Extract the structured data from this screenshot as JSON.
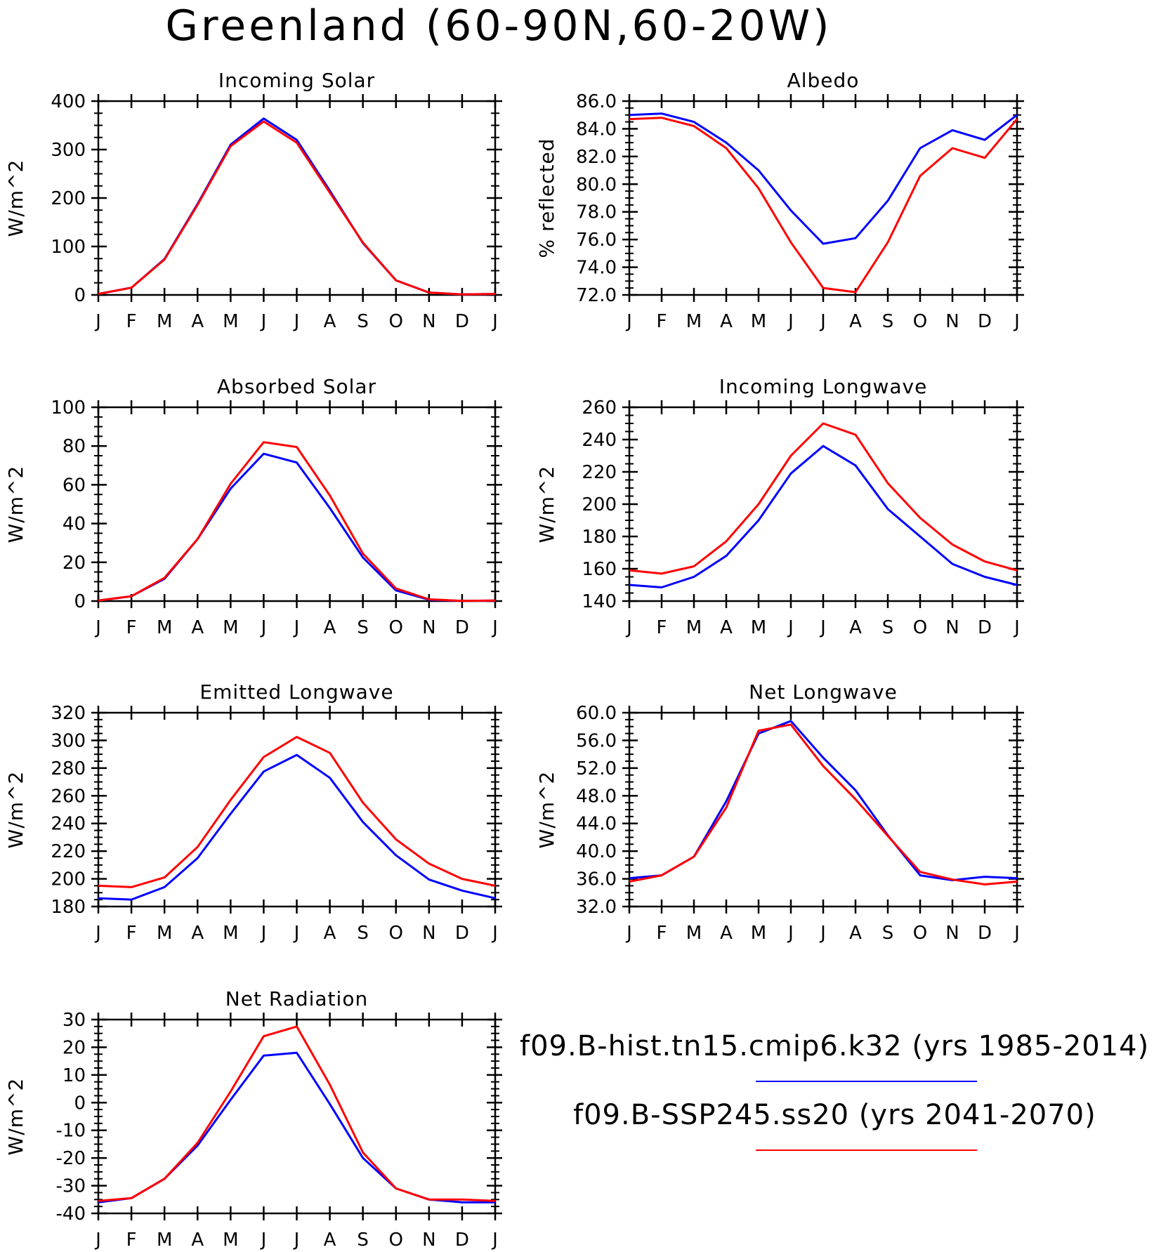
{
  "title": "Greenland (60-90N,60-20W)",
  "legend": [
    {
      "label": "f09.B-hist.tn15.cmip6.k32 (yrs 1985-2014)",
      "color": "#0000ff"
    },
    {
      "label": "f09.B-SSP245.ss20 (yrs 2041-2070)",
      "color": "#ff0000"
    }
  ],
  "chart_data": [
    {
      "type": "line",
      "title": "Incoming Solar",
      "ylabel": "W/m^2",
      "x": [
        "J",
        "F",
        "M",
        "A",
        "M",
        "J",
        "J",
        "A",
        "S",
        "O",
        "N",
        "D",
        "J"
      ],
      "ylim": [
        0,
        400
      ],
      "yticks": [
        0,
        100,
        200,
        300,
        400
      ],
      "ytick_labels": [
        "0",
        "100",
        "200",
        "300",
        "400"
      ],
      "series": [
        {
          "color": "#0000ff",
          "values": [
            2,
            15,
            74,
            188,
            310,
            364,
            320,
            215,
            107,
            30,
            5,
            1,
            2
          ]
        },
        {
          "color": "#ff0000",
          "values": [
            2,
            15,
            73,
            186,
            307,
            358,
            314,
            211,
            108,
            30,
            5,
            1,
            2
          ]
        }
      ]
    },
    {
      "type": "line",
      "title": "Albedo",
      "ylabel": "% reflected",
      "x": [
        "J",
        "F",
        "M",
        "A",
        "M",
        "J",
        "J",
        "A",
        "S",
        "O",
        "N",
        "D",
        "J"
      ],
      "ylim": [
        72,
        86
      ],
      "yticks": [
        72,
        74,
        76,
        78,
        80,
        82,
        84,
        86
      ],
      "ytick_labels": [
        "72.0",
        "74.0",
        "76.0",
        "78.0",
        "80.0",
        "82.0",
        "84.0",
        "86.0"
      ],
      "series": [
        {
          "color": "#0000ff",
          "values": [
            85.0,
            85.1,
            84.5,
            83.0,
            81.0,
            78.1,
            75.7,
            76.1,
            78.8,
            82.6,
            83.9,
            83.2,
            85.0
          ]
        },
        {
          "color": "#ff0000",
          "values": [
            84.7,
            84.8,
            84.2,
            82.6,
            79.7,
            75.8,
            72.5,
            72.2,
            75.8,
            80.6,
            82.6,
            81.9,
            84.7
          ]
        }
      ]
    },
    {
      "type": "line",
      "title": "Absorbed Solar",
      "ylabel": "W/m^2",
      "x": [
        "J",
        "F",
        "M",
        "A",
        "M",
        "J",
        "J",
        "A",
        "S",
        "O",
        "N",
        "D",
        "J"
      ],
      "ylim": [
        0,
        100
      ],
      "yticks": [
        0,
        20,
        40,
        60,
        80,
        100
      ],
      "ytick_labels": [
        "0",
        "20",
        "40",
        "60",
        "80",
        "100"
      ],
      "series": [
        {
          "color": "#0000ff",
          "values": [
            0.3,
            2.5,
            11.5,
            32,
            58,
            76,
            71.5,
            48,
            22.5,
            5.5,
            0.7,
            0.1,
            0.3
          ]
        },
        {
          "color": "#ff0000",
          "values": [
            0.3,
            2.5,
            12,
            32,
            60.5,
            82,
            79.5,
            54.5,
            24.5,
            6.5,
            0.9,
            0.1,
            0.3
          ]
        }
      ]
    },
    {
      "type": "line",
      "title": "Incoming Longwave",
      "ylabel": "W/m^2",
      "x": [
        "J",
        "F",
        "M",
        "A",
        "M",
        "J",
        "J",
        "A",
        "S",
        "O",
        "N",
        "D",
        "J"
      ],
      "ylim": [
        140,
        260
      ],
      "yticks": [
        140,
        160,
        180,
        200,
        220,
        240,
        260
      ],
      "ytick_labels": [
        "140",
        "160",
        "180",
        "200",
        "220",
        "240",
        "260"
      ],
      "series": [
        {
          "color": "#0000ff",
          "values": [
            150,
            148.5,
            155,
            168,
            190,
            219,
            236,
            224,
            197,
            180,
            163,
            155,
            150
          ]
        },
        {
          "color": "#ff0000",
          "values": [
            159,
            157,
            161.5,
            177,
            200,
            230,
            250,
            243,
            213,
            191.5,
            175,
            164.5,
            159
          ]
        }
      ]
    },
    {
      "type": "line",
      "title": "Emitted Longwave",
      "ylabel": "W/m^2",
      "x": [
        "J",
        "F",
        "M",
        "A",
        "M",
        "J",
        "J",
        "A",
        "S",
        "O",
        "N",
        "D",
        "J"
      ],
      "ylim": [
        180,
        320
      ],
      "yticks": [
        180,
        200,
        220,
        240,
        260,
        280,
        300,
        320
      ],
      "ytick_labels": [
        "180",
        "200",
        "220",
        "240",
        "260",
        "280",
        "300",
        "320"
      ],
      "series": [
        {
          "color": "#0000ff",
          "values": [
            186,
            185,
            194,
            215,
            247,
            277.5,
            289.5,
            273,
            241,
            217,
            199.5,
            191.5,
            186
          ]
        },
        {
          "color": "#ff0000",
          "values": [
            195,
            194,
            201,
            223,
            257,
            288,
            302.5,
            291,
            255,
            228.5,
            211,
            200,
            195
          ]
        }
      ]
    },
    {
      "type": "line",
      "title": "Net Longwave",
      "ylabel": "W/m^2",
      "x": [
        "J",
        "F",
        "M",
        "A",
        "M",
        "J",
        "J",
        "A",
        "S",
        "O",
        "N",
        "D",
        "J"
      ],
      "ylim": [
        32,
        60
      ],
      "yticks": [
        32,
        36,
        40,
        44,
        48,
        52,
        56,
        60
      ],
      "ytick_labels": [
        "32.0",
        "36.0",
        "40.0",
        "44.0",
        "48.0",
        "52.0",
        "56.0",
        "60.0"
      ],
      "series": [
        {
          "color": "#0000ff",
          "values": [
            36.1,
            36.5,
            39.2,
            47.2,
            57.0,
            58.8,
            53.5,
            48.8,
            42.3,
            36.5,
            35.8,
            36.3,
            36.1
          ]
        },
        {
          "color": "#ff0000",
          "values": [
            35.6,
            36.5,
            39.2,
            46.3,
            57.4,
            58.3,
            52.3,
            47.5,
            42.2,
            37.0,
            35.9,
            35.2,
            35.6
          ]
        }
      ]
    },
    {
      "type": "line",
      "title": "Net Radiation",
      "ylabel": "W/m^2",
      "x": [
        "J",
        "F",
        "M",
        "A",
        "M",
        "J",
        "J",
        "A",
        "S",
        "O",
        "N",
        "D",
        "J"
      ],
      "ylim": [
        -40,
        30
      ],
      "yticks": [
        -40,
        -30,
        -20,
        -10,
        0,
        10,
        20,
        30
      ],
      "ytick_labels": [
        "-40",
        "-30",
        "-20",
        "-10",
        "0",
        "10",
        "20",
        "30"
      ],
      "series": [
        {
          "color": "#0000ff",
          "values": [
            -36,
            -34.5,
            -27.5,
            -15.5,
            1,
            17,
            18,
            -0.5,
            -20,
            -31,
            -35,
            -36,
            -36
          ]
        },
        {
          "color": "#ff0000",
          "values": [
            -35.5,
            -34.5,
            -27.5,
            -14.5,
            4,
            24,
            27.5,
            6.5,
            -18,
            -31,
            -35,
            -35,
            -35.5
          ]
        }
      ]
    }
  ]
}
